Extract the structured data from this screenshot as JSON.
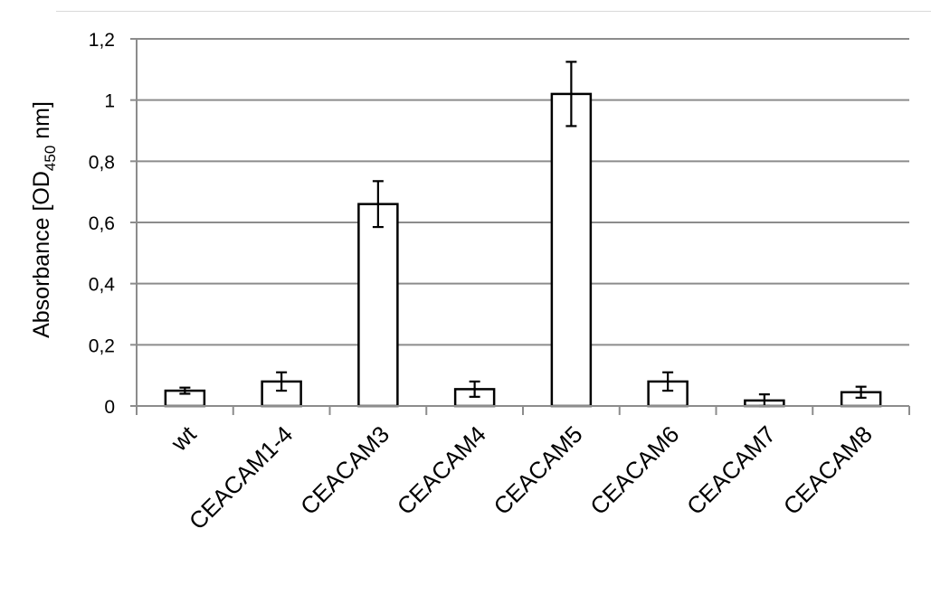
{
  "chart_data": {
    "type": "bar",
    "title": "",
    "xlabel": "",
    "ylabel": {
      "prefix": "Absorbance [OD",
      "subscript": "450",
      "suffix": " nm]"
    },
    "categories": [
      "wt",
      "CEACAM1-4",
      "CEACAM3",
      "CEACAM4",
      "CEACAM5",
      "CEACAM6",
      "CEACAM7",
      "CEACAM8"
    ],
    "values": [
      0.05,
      0.08,
      0.66,
      0.055,
      1.02,
      0.08,
      0.018,
      0.045
    ],
    "errors": [
      0.01,
      0.03,
      0.075,
      0.025,
      0.105,
      0.03,
      0.02,
      0.018
    ],
    "ylim": [
      0,
      1.2
    ],
    "yticks": [
      {
        "value": 0,
        "label": "0"
      },
      {
        "value": 0.2,
        "label": "0,2"
      },
      {
        "value": 0.4,
        "label": "0,4"
      },
      {
        "value": 0.6,
        "label": "0,6"
      },
      {
        "value": 0.8,
        "label": "0,8"
      },
      {
        "value": 1.0,
        "label": "1"
      },
      {
        "value": 1.2,
        "label": "1,2"
      }
    ],
    "grid": true,
    "legend": "none",
    "colors": {
      "bar_fill": "#ffffff",
      "bar_stroke": "#000000",
      "grid": "#8c8c8c",
      "axis": "#8c8c8c"
    }
  }
}
